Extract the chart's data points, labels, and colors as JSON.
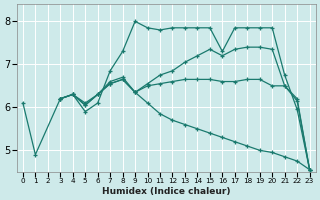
{
  "xlabel": "Humidex (Indice chaleur)",
  "background_color": "#ceeaea",
  "grid_color": "#ffffff",
  "line_color": "#1a7a6e",
  "xlim": [
    -0.5,
    23.5
  ],
  "ylim": [
    4.5,
    8.4
  ],
  "yticks": [
    5,
    6,
    7,
    8
  ],
  "xticks": [
    0,
    1,
    2,
    3,
    4,
    5,
    6,
    7,
    8,
    9,
    10,
    11,
    12,
    13,
    14,
    15,
    16,
    17,
    18,
    19,
    20,
    21,
    22,
    23
  ],
  "lines": [
    {
      "x": [
        0,
        1,
        3,
        4,
        5,
        6,
        7,
        8,
        9,
        10,
        11,
        12,
        13,
        14,
        15,
        16,
        17,
        18,
        19,
        20,
        21,
        22,
        23
      ],
      "y": [
        6.1,
        4.9,
        6.2,
        6.3,
        5.9,
        6.1,
        6.85,
        7.3,
        8.0,
        7.85,
        7.8,
        7.85,
        7.85,
        7.85,
        7.85,
        7.3,
        7.85,
        7.85,
        7.85,
        7.85,
        6.75,
        5.95,
        4.55
      ]
    },
    {
      "x": [
        3,
        4,
        5,
        6,
        7,
        8,
        9,
        10,
        11,
        12,
        13,
        14,
        15,
        16,
        17,
        18,
        19,
        20,
        21,
        22,
        23
      ],
      "y": [
        6.2,
        6.3,
        6.1,
        6.3,
        6.6,
        6.7,
        6.35,
        6.55,
        6.75,
        6.85,
        7.05,
        7.2,
        7.35,
        7.2,
        7.35,
        7.4,
        7.4,
        7.35,
        6.5,
        6.2,
        4.55
      ]
    },
    {
      "x": [
        3,
        4,
        5,
        6,
        7,
        8,
        9,
        10,
        11,
        12,
        13,
        14,
        15,
        16,
        17,
        18,
        19,
        20,
        21,
        22,
        23
      ],
      "y": [
        6.2,
        6.3,
        6.05,
        6.3,
        6.55,
        6.65,
        6.35,
        6.5,
        6.55,
        6.6,
        6.65,
        6.65,
        6.65,
        6.6,
        6.6,
        6.65,
        6.65,
        6.5,
        6.5,
        6.15,
        4.55
      ]
    },
    {
      "x": [
        3,
        4,
        5,
        6,
        7,
        8,
        9,
        10,
        11,
        12,
        13,
        14,
        15,
        16,
        17,
        18,
        19,
        20,
        21,
        22,
        23
      ],
      "y": [
        6.2,
        6.3,
        6.05,
        6.3,
        6.55,
        6.65,
        6.35,
        6.1,
        5.85,
        5.7,
        5.6,
        5.5,
        5.4,
        5.3,
        5.2,
        5.1,
        5.0,
        4.95,
        4.85,
        4.75,
        4.55
      ]
    }
  ]
}
